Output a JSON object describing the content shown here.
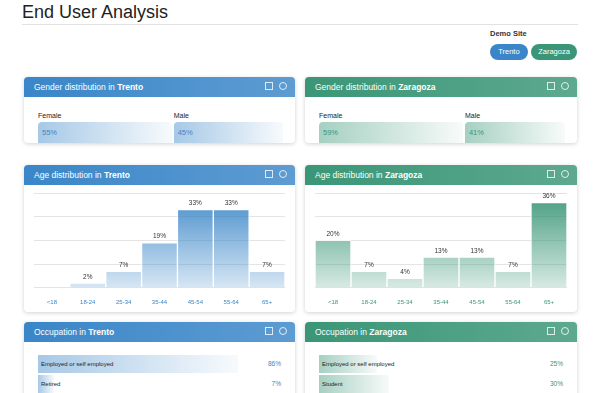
{
  "page": {
    "title": "End User Analysis",
    "filter_label": "Demo Site",
    "sites": [
      {
        "name": "Trento",
        "color": "#3a86c8"
      },
      {
        "name": "Zaragoza",
        "color": "#3a9677"
      }
    ]
  },
  "chart_data": [
    {
      "type": "bar",
      "orientation": "horizontal",
      "stacked": true,
      "title": "Gender distribution in Trento",
      "emphasis": "Trento",
      "categories": [
        "Female",
        "Male"
      ],
      "values": [
        55,
        45
      ],
      "value_labels": [
        "55%",
        "45%"
      ],
      "data_labels": true,
      "tick_labels": false,
      "color": "#3a86c8"
    },
    {
      "type": "bar",
      "orientation": "horizontal",
      "stacked": true,
      "title": "Gender distribution in Zaragoza",
      "emphasis": "Zaragoza",
      "categories": [
        "Female",
        "Male"
      ],
      "values": [
        59,
        41
      ],
      "value_labels": [
        "59%",
        "41%"
      ],
      "data_labels": true,
      "tick_labels": false,
      "color": "#3a9677"
    },
    {
      "type": "bar",
      "title": "Age distribution in Trento",
      "emphasis": "Trento",
      "categories": [
        "<18",
        "18-24",
        "25-34",
        "35-44",
        "45-54",
        "55-64",
        "65+"
      ],
      "values": [
        null,
        2,
        7,
        19,
        33,
        33,
        7
      ],
      "value_labels": [
        null,
        "2%",
        "7%",
        "19%",
        "33%",
        "33%",
        "7%"
      ],
      "data_labels": true,
      "tick_labels": "x",
      "grid": true,
      "ylim": [
        0,
        40
      ],
      "yticks": [
        0,
        10,
        20,
        30,
        40
      ],
      "color": "#3a86c8"
    },
    {
      "type": "bar",
      "title": "Age distribution in Zaragoza",
      "emphasis": "Zaragoza",
      "categories": [
        "<18",
        "18-24",
        "25-34",
        "35-44",
        "45-54",
        "55-64",
        "65+"
      ],
      "values": [
        20,
        7,
        4,
        13,
        13,
        7,
        36
      ],
      "value_labels": [
        "20%",
        "7%",
        "4%",
        "13%",
        "13%",
        "7%",
        "36%"
      ],
      "data_labels": true,
      "tick_labels": "x",
      "grid": true,
      "ylim": [
        0,
        40
      ],
      "yticks": [
        0,
        10,
        20,
        30,
        40
      ],
      "color": "#3a9677"
    },
    {
      "type": "bar",
      "orientation": "horizontal",
      "title": "Occupation in Trento",
      "emphasis": "Trento",
      "categories": [
        "Employed or self employed",
        "Retired"
      ],
      "values": [
        86,
        7
      ],
      "value_labels": [
        "86%",
        "7%"
      ],
      "data_labels": true,
      "tick_labels": "y",
      "color": "#3a86c8"
    },
    {
      "type": "bar",
      "orientation": "horizontal",
      "title": "Occupation in Zaragoza",
      "emphasis": "Zaragoza",
      "categories": [
        "Employed or self employed",
        "Student"
      ],
      "values": [
        25,
        30
      ],
      "value_labels": [
        "25%",
        "30%"
      ],
      "data_labels": true,
      "tick_labels": "y",
      "color": "#3a9677"
    }
  ]
}
